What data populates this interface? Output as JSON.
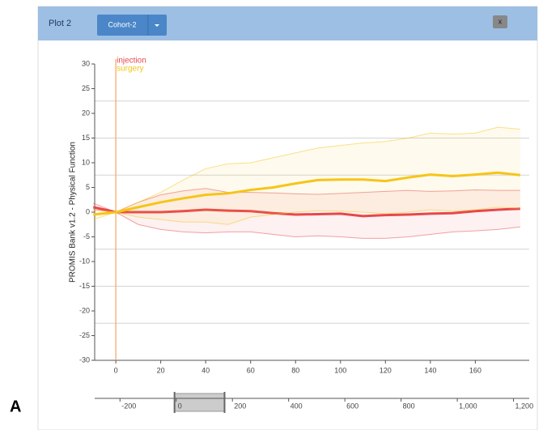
{
  "panel": {
    "title": "Plot 2",
    "dropdown": "Cohort-2",
    "close": "x"
  },
  "figure_label": "A",
  "chart_data": {
    "type": "line",
    "ylabel": "PROMIS Bank v1.2 - Physical Function",
    "x": [
      -10,
      0,
      10,
      20,
      30,
      40,
      50,
      60,
      70,
      80,
      90,
      100,
      110,
      120,
      130,
      140,
      150,
      160,
      170,
      180
    ],
    "series": [
      {
        "name": "injection",
        "color": "#e8474b",
        "values": [
          1,
          0,
          0,
          0,
          0.2,
          0.5,
          0.3,
          0.2,
          -0.2,
          -0.5,
          -0.4,
          -0.3,
          -0.8,
          -0.6,
          -0.5,
          -0.3,
          -0.2,
          0.2,
          0.5,
          0.7
        ],
        "upper": [
          1.8,
          0,
          2,
          3.5,
          4.3,
          4.8,
          4,
          4,
          3.9,
          3.7,
          3.6,
          3.8,
          4,
          4.2,
          4.4,
          4.2,
          4.3,
          4.5,
          4.4,
          4.4
        ],
        "lower": [
          0.5,
          0,
          -2.5,
          -3.5,
          -4,
          -4.2,
          -4,
          -4,
          -4.5,
          -5,
          -4.8,
          -5,
          -5.3,
          -5.3,
          -5,
          -4.5,
          -4,
          -3.8,
          -3.5,
          -3
        ]
      },
      {
        "name": "surgery",
        "color": "#f5c518",
        "values": [
          -0.5,
          0,
          1,
          2,
          2.8,
          3.5,
          3.8,
          4.5,
          5,
          5.8,
          6.5,
          6.6,
          6.6,
          6.3,
          7,
          7.6,
          7.3,
          7.6,
          8,
          7.5
        ],
        "upper": [
          0.5,
          0,
          2,
          4,
          6.5,
          8.8,
          9.8,
          10,
          11,
          12,
          13,
          13.5,
          14,
          14.3,
          15,
          16,
          15.8,
          16,
          17.2,
          16.8
        ],
        "lower": [
          -1.5,
          0,
          -1,
          -1.5,
          -2,
          -2,
          -2.5,
          -1,
          -0.5,
          0,
          0.3,
          0.2,
          0,
          -0.3,
          0,
          0.5,
          0.2,
          0.5,
          1,
          0.8
        ]
      }
    ],
    "event_x": 0,
    "xlim": [
      -9.4,
      184
    ],
    "ylim": [
      -30,
      30
    ],
    "xticks": [
      0,
      20,
      40,
      60,
      80,
      100,
      120,
      140,
      160
    ],
    "yticks": [
      -30,
      -25,
      -20,
      -15,
      -10,
      -5,
      0,
      5,
      10,
      15,
      20,
      25,
      30
    ],
    "ygrid": [
      -22.5,
      -15,
      -7.5,
      7.5,
      15,
      22.5
    ],
    "navigator": {
      "xlim": [
        -290,
        1256
      ],
      "xticks": [
        -200,
        0,
        200,
        400,
        600,
        800,
        {
          "value": 1000,
          "label": "1,000"
        },
        {
          "value": 1200,
          "label": "1,200"
        }
      ],
      "selection": [
        -6,
        172
      ]
    }
  }
}
